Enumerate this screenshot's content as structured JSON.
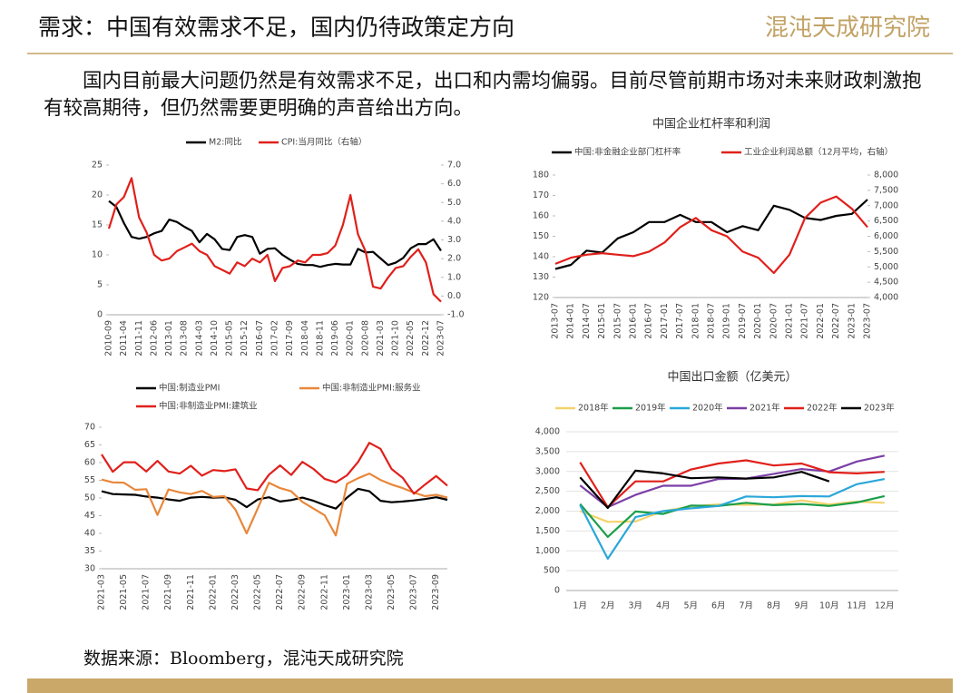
{
  "header": {
    "title": "需求：中国有效需求不足，国内仍待政策定方向",
    "logo": "混沌天成研究院"
  },
  "body": "国内目前最大问题仍然是有效需求不足，出口和内需均偏弱。目前尽管前期市场对未来财政刺激抱有较高期待，但仍然需要更明确的声音给出方向。",
  "source": "数据来源：Bloomberg，混沌天成研究院",
  "chart_data": [
    {
      "type": "line",
      "legend": "top",
      "categories": [
        "2010-09",
        null,
        "2011-04",
        null,
        "2011-11",
        null,
        "2012-06",
        null,
        "2013-01",
        null,
        "2013-08",
        null,
        "2014-03",
        null,
        "2014-10",
        null,
        "2015-05",
        null,
        "2015-12",
        null,
        "2016-07",
        null,
        "2017-02",
        null,
        "2017-09",
        null,
        "2018-04",
        null,
        "2018-11",
        null,
        "2019-06",
        null,
        "2020-01",
        null,
        "2020-08",
        null,
        "2021-03",
        null,
        "2021-10",
        null,
        "2022-05",
        null,
        "2022-12",
        null,
        "2023-07"
      ],
      "ylim": [
        0,
        25
      ],
      "yticks": [
        0,
        5,
        10,
        15,
        20,
        25
      ],
      "y2lim": [
        -1,
        7
      ],
      "y2ticks": [
        {
          "value": 7,
          "label": "7.0"
        },
        {
          "value": 6,
          "label": "6.0"
        },
        {
          "value": 5,
          "label": "5.0"
        },
        {
          "value": 4,
          "label": "4.0"
        },
        {
          "value": 3,
          "label": "3.0"
        },
        {
          "value": 2,
          "label": "2.0"
        },
        {
          "value": 1,
          "label": "1.0"
        },
        {
          "value": 0,
          "label": "0.0"
        },
        {
          "value": -1,
          "label": "-1.0"
        }
      ],
      "series": [
        {
          "name": "M2:同比",
          "color": "#000000",
          "values": [
            19,
            18,
            15.3,
            13,
            12.7,
            13,
            13.6,
            14,
            15.9,
            15.5,
            14.7,
            14,
            12.1,
            13.5,
            12.6,
            11,
            10.8,
            13,
            13.3,
            13,
            10.2,
            11,
            11.1,
            10,
            9.2,
            8.5,
            8.3,
            8.3,
            8,
            8.3,
            8.5,
            8.4,
            8.4,
            11,
            10.4,
            10.5,
            9.4,
            8.3,
            8.7,
            9.5,
            11.1,
            11.8,
            11.8,
            12.6,
            10.7
          ]
        },
        {
          "name": "CPI:当月同比（右轴）",
          "color": "#e0201b",
          "axis": "y2",
          "values": [
            3.6,
            4.9,
            5.3,
            6.3,
            4.2,
            3.4,
            2.2,
            1.9,
            2,
            2.4,
            2.6,
            2.8,
            2.4,
            2.2,
            1.6,
            1.4,
            1.2,
            1.8,
            1.6,
            2,
            1.8,
            2.2,
            0.8,
            1.5,
            1.6,
            1.9,
            1.8,
            2.2,
            2.2,
            2.3,
            2.7,
            3.8,
            5.4,
            3.3,
            2.4,
            0.5,
            0.4,
            1,
            1.5,
            1.6,
            2.1,
            2.5,
            1.8,
            0.1,
            -0.3
          ]
        }
      ]
    },
    {
      "type": "line",
      "legend": "top",
      "title": "中国企业杠杆率和利润",
      "categories": [
        "2013-07",
        "2014-01",
        "2014-07",
        "2015-01",
        "2015-07",
        "2016-01",
        "2016-07",
        "2017-01",
        "2017-07",
        "2018-01",
        "2018-07",
        "2019-01",
        "2019-07",
        "2020-01",
        "2020-07",
        "2021-01",
        "2021-07",
        "2022-01",
        "2022-07",
        "2023-01",
        "2023-07"
      ],
      "ylim": [
        120,
        180
      ],
      "yticks": [
        120,
        130,
        140,
        150,
        160,
        170,
        180
      ],
      "y2lim": [
        4000,
        8000
      ],
      "y2ticks": [
        {
          "value": 4000,
          "label": "4,000"
        },
        {
          "value": 4500,
          "label": "4,500"
        },
        {
          "value": 5000,
          "label": "5,000"
        },
        {
          "value": 5500,
          "label": "5,500"
        },
        {
          "value": 6000,
          "label": "6,000"
        },
        {
          "value": 6500,
          "label": "6,500"
        },
        {
          "value": 7000,
          "label": "7,000"
        },
        {
          "value": 7500,
          "label": "7,500"
        },
        {
          "value": 8000,
          "label": "8,000"
        }
      ],
      "series": [
        {
          "name": "中国:非金融企业部门杠杆率",
          "color": "#000000",
          "values": [
            134,
            136,
            143,
            142,
            149,
            152,
            157,
            157,
            160.5,
            157,
            157,
            152,
            155,
            153,
            165,
            163,
            159,
            158,
            160,
            161,
            168
          ]
        },
        {
          "name": "工业企业利润总额（12月平均，右轴）",
          "color": "#e0201b",
          "axis": "y2",
          "values": [
            5100,
            5300,
            5400,
            5450,
            5400,
            5350,
            5500,
            5800,
            6300,
            6600,
            6200,
            6000,
            5500,
            5300,
            4800,
            5400,
            6600,
            7100,
            7300,
            6900,
            6300
          ]
        }
      ]
    },
    {
      "type": "line",
      "legend": "top",
      "categories": [
        "2021-03",
        null,
        "2021-05",
        null,
        "2021-07",
        null,
        "2021-09",
        null,
        "2021-11",
        null,
        "2022-01",
        null,
        "2022-03",
        null,
        "2022-05",
        null,
        "2022-07",
        null,
        "2022-09",
        null,
        "2022-11",
        null,
        "2023-01",
        null,
        "2023-03",
        null,
        "2023-05",
        null,
        "2023-07",
        null,
        "2023-09",
        null
      ],
      "ylim": [
        30,
        70
      ],
      "yticks": [
        30,
        35,
        40,
        45,
        50,
        55,
        60,
        65,
        70
      ],
      "series": [
        {
          "name": "中国:制造业PMI",
          "color": "#000000",
          "values": [
            51.9,
            51.1,
            51,
            50.9,
            50.4,
            50.1,
            49.6,
            49.2,
            50.1,
            50.3,
            50.1,
            50.2,
            49.5,
            47.4,
            49.6,
            50.2,
            49,
            49.4,
            50.1,
            49.2,
            48,
            47,
            50.1,
            52.6,
            51.9,
            49.2,
            48.8,
            49,
            49.3,
            49.7,
            50.2,
            49.5
          ]
        },
        {
          "name": "中国:非制造业PMI:服务业",
          "color": "#e8873a",
          "values": [
            55.2,
            54.4,
            54.3,
            52.3,
            52.5,
            45.2,
            52.4,
            51.6,
            51.1,
            52,
            50.3,
            50.5,
            46.7,
            40,
            47.1,
            54.3,
            52.8,
            51.9,
            48.9,
            47,
            45.1,
            39.4,
            54,
            55.6,
            56.9,
            55.1,
            53.8,
            52.8,
            51.5,
            50.5,
            50.9,
            50.1
          ]
        },
        {
          "name": "中国:非制造业PMI:建筑业",
          "color": "#e0201b",
          "values": [
            62.3,
            57.4,
            60.1,
            60.1,
            57.5,
            60.5,
            57.5,
            56.9,
            59.1,
            56.3,
            57.9,
            57.6,
            58.1,
            52.7,
            52.2,
            56.6,
            59.2,
            56.5,
            60.2,
            58.2,
            55.4,
            54.4,
            56.4,
            60.2,
            65.6,
            63.9,
            58.2,
            55.7,
            51.2,
            53.8,
            56.2,
            53.5
          ]
        }
      ]
    },
    {
      "type": "line",
      "legend": "top",
      "title": "中国出口金额（亿美元）",
      "grid": true,
      "categories": [
        "1月",
        "2月",
        "3月",
        "4月",
        "5月",
        "6月",
        "7月",
        "8月",
        "9月",
        "10月",
        "11月",
        "12月"
      ],
      "ylim": [
        0,
        4000
      ],
      "yticks": [
        0,
        500,
        {
          "value": 1000,
          "label": "1,000"
        },
        {
          "value": 1500,
          "label": "1,500"
        },
        {
          "value": 2000,
          "label": "2,000"
        },
        {
          "value": 2500,
          "label": "2,500"
        },
        {
          "value": 3000,
          "label": "3,000"
        },
        {
          "value": 3500,
          "label": "3,500"
        },
        {
          "value": 4000,
          "label": "4,000"
        }
      ],
      "series": [
        {
          "name": "2018年",
          "color": "#f3d36b",
          "values": [
            2000,
            1730,
            1740,
            2000,
            2120,
            2170,
            2160,
            2170,
            2270,
            2170,
            2240,
            2210
          ]
        },
        {
          "name": "2019年",
          "color": "#1a9e4a",
          "values": [
            2180,
            1350,
            1990,
            1930,
            2140,
            2130,
            2210,
            2150,
            2180,
            2130,
            2220,
            2380
          ]
        },
        {
          "name": "2020年",
          "color": "#2aa7d9",
          "values": [
            2150,
            800,
            1850,
            2000,
            2070,
            2130,
            2370,
            2350,
            2380,
            2370,
            2680,
            2810
          ]
        },
        {
          "name": "2021年",
          "color": "#7b3fa6",
          "values": [
            2650,
            2100,
            2410,
            2640,
            2640,
            2810,
            2820,
            2940,
            3060,
            3000,
            3250,
            3400
          ]
        },
        {
          "name": "2022年",
          "color": "#e0201b",
          "values": [
            3230,
            2100,
            2750,
            2750,
            3050,
            3200,
            3280,
            3150,
            3200,
            2980,
            2950,
            2990
          ]
        },
        {
          "name": "2023年",
          "color": "#000000",
          "values": [
            2850,
            2080,
            3020,
            2950,
            2830,
            2850,
            2820,
            2850,
            2990,
            2750,
            null,
            null
          ]
        }
      ]
    }
  ]
}
